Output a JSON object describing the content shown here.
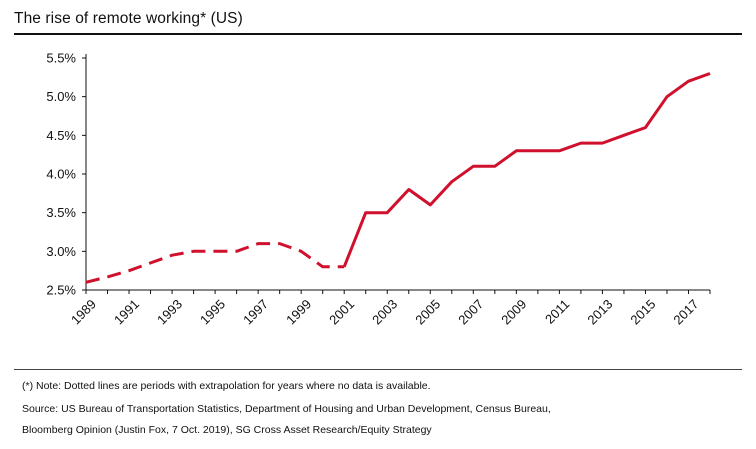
{
  "chart_data": {
    "type": "line",
    "title": "The rise of remote working* (US)",
    "xlabel": "",
    "ylabel": "",
    "x_tick_labels": [
      "1989",
      "1991",
      "1993",
      "1995",
      "1997",
      "1999",
      "2001",
      "2003",
      "2005",
      "2007",
      "2009",
      "2011",
      "2013",
      "2015",
      "2017"
    ],
    "y_tick_labels": [
      "2.5%",
      "3.0%",
      "3.5%",
      "4.0%",
      "4.5%",
      "5.0%",
      "5.5%"
    ],
    "xlim": [
      1989,
      2018
    ],
    "ylim": [
      2.5,
      5.5
    ],
    "color": "#D0102C",
    "series": [
      {
        "style": "dashed",
        "x": [
          1989,
          1990,
          1991,
          1992,
          1993,
          1994,
          1995,
          1996,
          1997,
          1998,
          1999,
          2000,
          2001
        ],
        "y": [
          2.6,
          2.67,
          2.75,
          2.85,
          2.95,
          3.0,
          3.0,
          3.0,
          3.1,
          3.1,
          3.0,
          2.8,
          2.8
        ]
      },
      {
        "style": "solid",
        "x": [
          2001,
          2002,
          2003,
          2004,
          2005,
          2006,
          2007,
          2008,
          2009,
          2010,
          2011,
          2012,
          2013,
          2014,
          2015,
          2016,
          2017,
          2018
        ],
        "y": [
          2.8,
          3.5,
          3.5,
          3.8,
          3.6,
          3.9,
          4.1,
          4.1,
          4.3,
          4.3,
          4.3,
          4.4,
          4.4,
          4.5,
          4.6,
          5.0,
          5.2,
          5.3
        ]
      }
    ],
    "grid": false,
    "legend": "none"
  },
  "notes": {
    "line1": "(*) Note: Dotted lines are periods with extrapolation for years where no data is available.",
    "line2": "Source: US Bureau of Transportation Statistics, Department of Housing and Urban Development, Census Bureau,",
    "line3": "Bloomberg Opinion (Justin Fox, 7 Oct. 2019), SG Cross Asset Research/Equity Strategy"
  }
}
